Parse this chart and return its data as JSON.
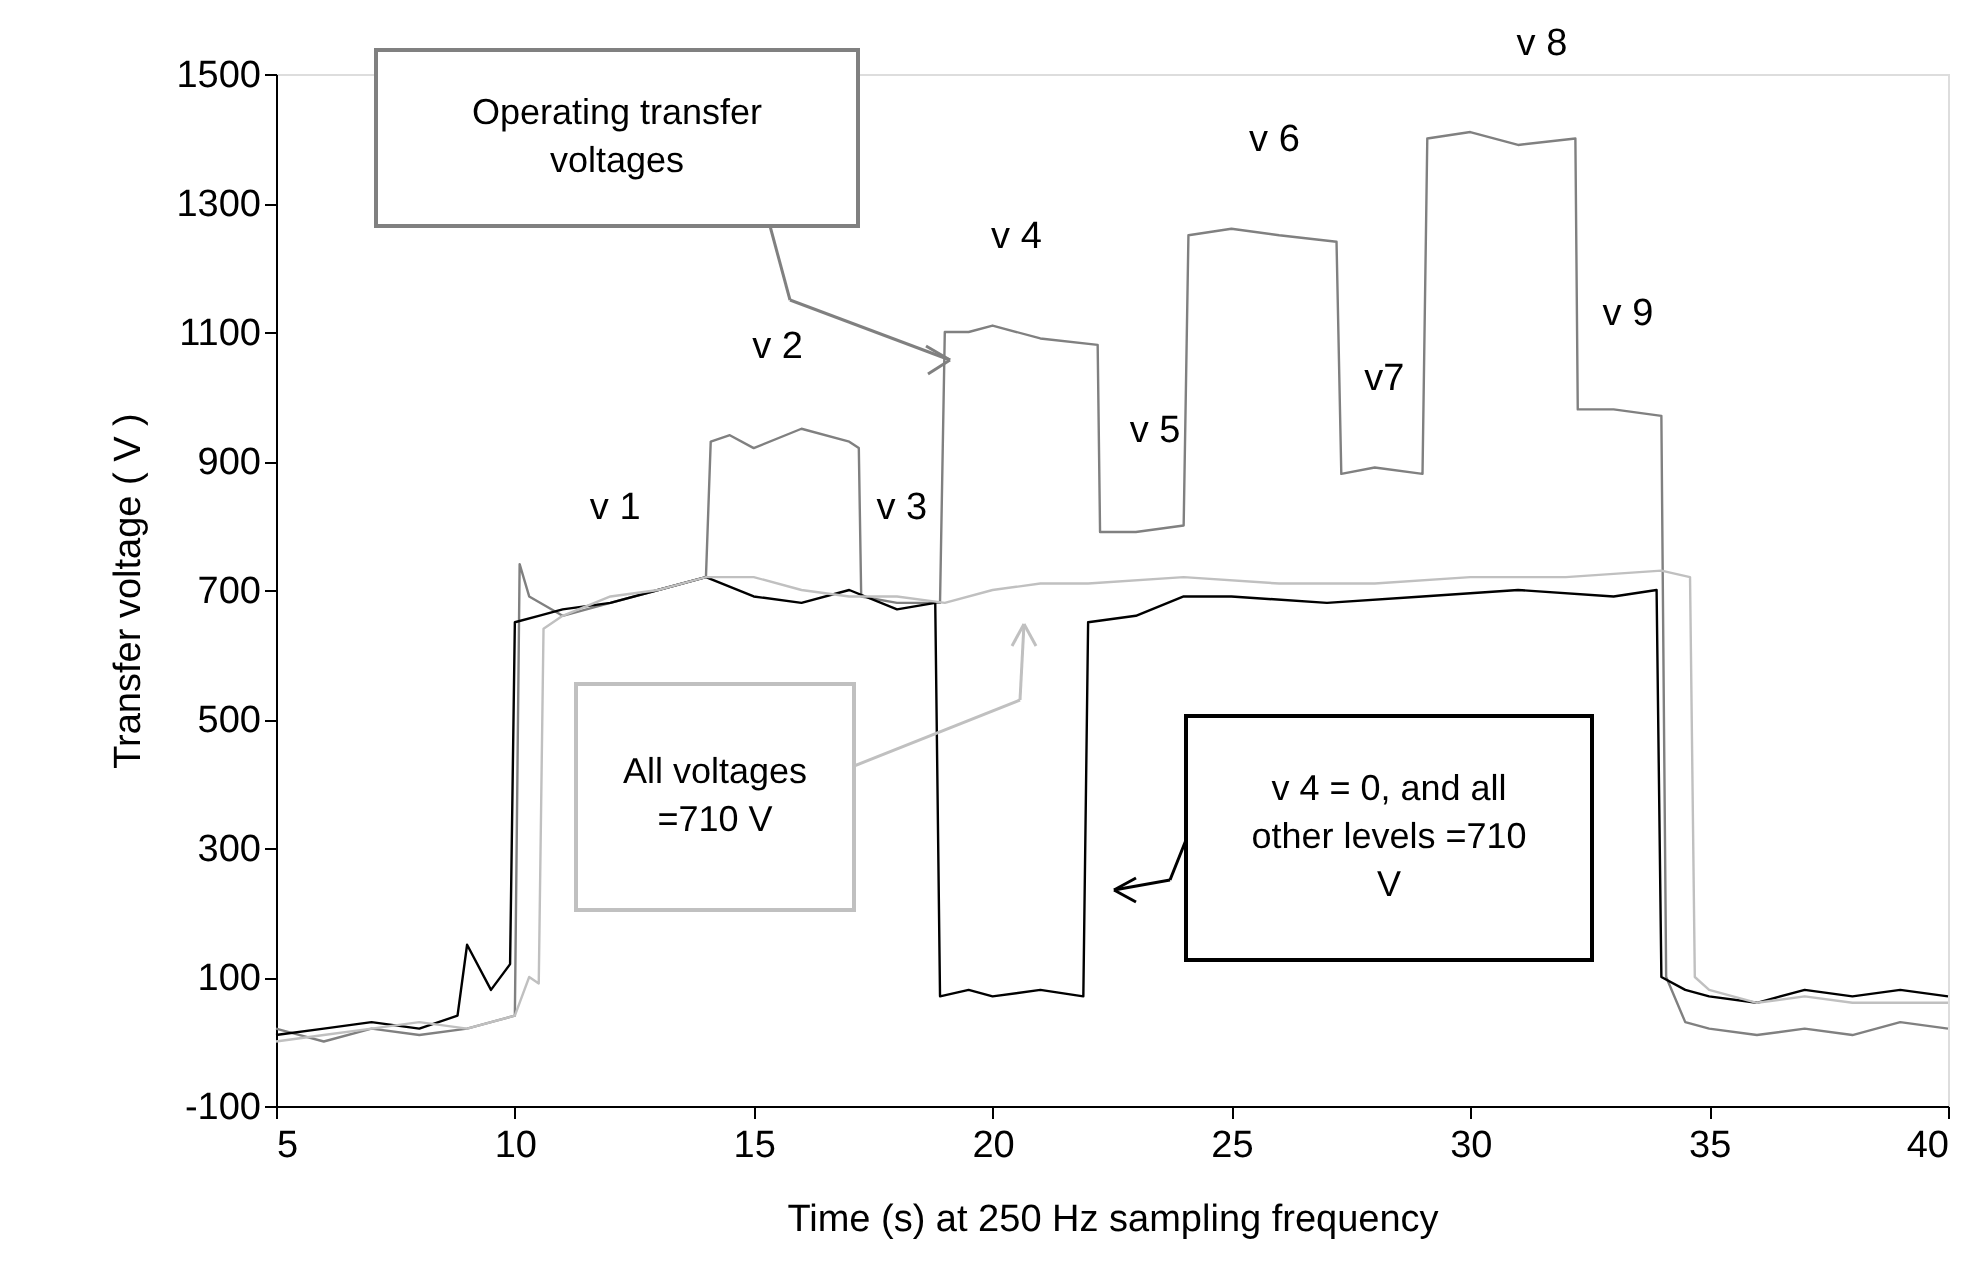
{
  "chart_data": {
    "type": "line",
    "xlabel": "Time (s) at 250 Hz sampling frequency",
    "ylabel": "Transfer voltage ( V )",
    "xlim": [
      5,
      40
    ],
    "xticks": [
      5,
      10,
      15,
      20,
      25,
      30,
      35,
      40
    ],
    "ylim": [
      -100,
      1500
    ],
    "yticks": [
      -100,
      100,
      300,
      500,
      700,
      900,
      1100,
      1300,
      1500
    ],
    "grid": false,
    "legend": false,
    "marker": "none",
    "line_style": "solid",
    "series": [
      {
        "color": "#808080",
        "x": [
          5,
          5.5,
          6,
          7,
          8,
          9,
          9.5,
          10.0,
          10.1,
          10.3,
          11,
          12,
          13,
          14,
          14.1,
          14.5,
          15,
          16,
          17,
          17.2,
          17.25,
          18,
          18.9,
          19.0,
          19.5,
          20,
          21,
          22.2,
          22.25,
          23,
          24,
          24.1,
          25,
          26,
          27.2,
          27.3,
          28,
          29,
          29.1,
          30,
          31,
          32.2,
          32.25,
          33,
          34.0,
          34.1,
          34.5,
          35,
          36,
          37,
          38,
          39,
          40
        ],
        "values": [
          20,
          10,
          0,
          20,
          10,
          20,
          30,
          40,
          740,
          690,
          660,
          680,
          700,
          720,
          930,
          940,
          920,
          950,
          930,
          920,
          690,
          680,
          680,
          1100,
          1100,
          1110,
          1090,
          1080,
          790,
          790,
          800,
          1250,
          1260,
          1250,
          1240,
          880,
          890,
          880,
          1400,
          1410,
          1390,
          1400,
          980,
          980,
          970,
          100,
          30,
          20,
          10,
          20,
          10,
          30,
          20
        ]
      },
      {
        "color": "#000000",
        "x": [
          5,
          6,
          7,
          8,
          8.8,
          9,
          9.5,
          9.9,
          10,
          10.5,
          11,
          12,
          13,
          14,
          15,
          16,
          17,
          18,
          18.8,
          18.9,
          19.5,
          20,
          21,
          21.9,
          22,
          23,
          24,
          25,
          27,
          29,
          31,
          33,
          33.9,
          34,
          34.5,
          35,
          36,
          37,
          38,
          39,
          40
        ],
        "values": [
          10,
          20,
          30,
          20,
          40,
          150,
          80,
          120,
          650,
          660,
          670,
          680,
          700,
          720,
          690,
          680,
          700,
          670,
          680,
          70,
          80,
          70,
          80,
          70,
          650,
          660,
          690,
          690,
          680,
          690,
          700,
          690,
          700,
          100,
          80,
          70,
          60,
          80,
          70,
          80,
          70
        ]
      },
      {
        "color": "#c0c0c0",
        "x": [
          5,
          6,
          7,
          8,
          9,
          10,
          10.3,
          10.5,
          10.6,
          11,
          12,
          13,
          14,
          15,
          16,
          17,
          18,
          19,
          20,
          21,
          22,
          24,
          26,
          28,
          30,
          32,
          34,
          34.6,
          34.7,
          35,
          36,
          37,
          38,
          39,
          40
        ],
        "values": [
          0,
          10,
          20,
          30,
          20,
          40,
          100,
          90,
          640,
          660,
          690,
          700,
          720,
          720,
          700,
          690,
          690,
          680,
          700,
          710,
          710,
          720,
          710,
          710,
          720,
          720,
          730,
          720,
          100,
          80,
          60,
          70,
          60,
          60,
          60
        ]
      }
    ],
    "annotations": [
      {
        "text": "v 1",
        "x": 12.1,
        "y": 680
      },
      {
        "text": "v 2",
        "x": 15.5,
        "y": 930
      },
      {
        "text": "v 3",
        "x": 18.1,
        "y": 680
      },
      {
        "text": "v 4",
        "x": 20.5,
        "y": 1100
      },
      {
        "text": "v 5",
        "x": 23.4,
        "y": 800
      },
      {
        "text": "v 6",
        "x": 25.9,
        "y": 1250
      },
      {
        "text": "v7",
        "x": 28.2,
        "y": 880
      },
      {
        "text": "v 8",
        "x": 31.5,
        "y": 1400
      },
      {
        "text": "v 9",
        "x": 33.3,
        "y": 980
      },
      "Operating transfer voltages",
      "All voltages =710 V",
      "v 4 = 0, and all other levels =710 V"
    ]
  }
}
